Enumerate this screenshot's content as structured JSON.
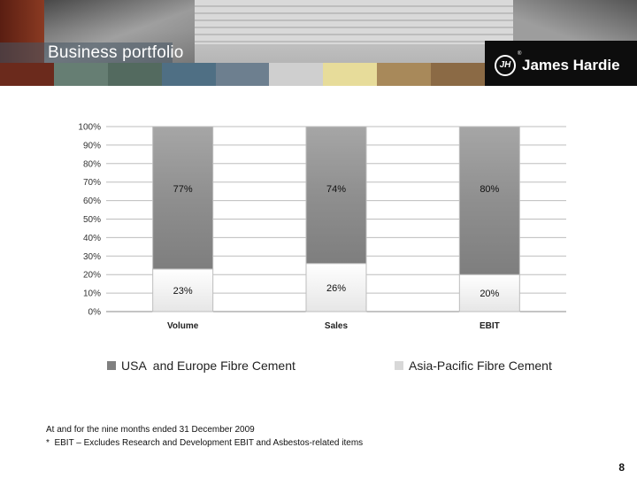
{
  "header": {
    "title": "Business portfolio",
    "logo_text": "James Hardie",
    "logo_mark": "JH",
    "logo_registered": "®",
    "swatch_colors": [
      "#6b2a1c",
      "#667e73",
      "#536a5f",
      "#4f6f84",
      "#6d7f8f",
      "#cfcfcf",
      "#e7dc9a",
      "#a8895a",
      "#8b6a45"
    ]
  },
  "chart_data": {
    "type": "bar",
    "stacked": true,
    "categories": [
      "Volume",
      "Sales",
      "EBIT"
    ],
    "series": [
      {
        "name": "Asia-Pacific Fibre Cement",
        "values": [
          23,
          26,
          20
        ],
        "labels": [
          "23%",
          "26%",
          "20%"
        ],
        "color": "#f4f4f4"
      },
      {
        "name": "USA  and Europe Fibre Cement",
        "values": [
          77,
          74,
          80
        ],
        "labels": [
          "77%",
          "74%",
          "80%"
        ],
        "color": "#8c8c8c"
      }
    ],
    "ylim": [
      0,
      100
    ],
    "yticks": [
      "0%",
      "10%",
      "20%",
      "30%",
      "40%",
      "50%",
      "60%",
      "70%",
      "80%",
      "90%",
      "100%"
    ],
    "grid": true,
    "legend_position": "bottom"
  },
  "legend": [
    {
      "label": "USA  and Europe Fibre Cement",
      "color": "#808080"
    },
    {
      "label": "Asia-Pacific Fibre Cement",
      "color": "#d8d8d8"
    }
  ],
  "notes": {
    "period": "At and for the nine months ended 31 December 2009",
    "footnote": "*  EBIT – Excludes Research and Development EBIT and Asbestos-related items"
  },
  "page_number": "8"
}
